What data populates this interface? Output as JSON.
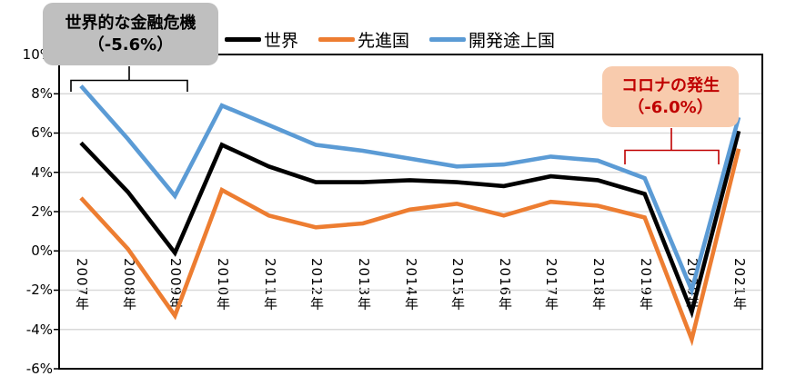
{
  "chart_data": {
    "type": "line",
    "categories": [
      "2007年",
      "2008年",
      "2009年",
      "2010年",
      "2011年",
      "2012年",
      "2013年",
      "2014年",
      "2015年",
      "2016年",
      "2017年",
      "2018年",
      "2019年",
      "2020年",
      "2021年"
    ],
    "series": [
      {
        "name": "世界",
        "color": "#000000",
        "values": [
          5.5,
          3.0,
          -0.1,
          5.4,
          4.3,
          3.5,
          3.5,
          3.6,
          3.5,
          3.3,
          3.8,
          3.6,
          2.9,
          -3.1,
          6.1
        ]
      },
      {
        "name": "先進国",
        "color": "#ED7D31",
        "values": [
          2.7,
          0.1,
          -3.3,
          3.1,
          1.8,
          1.2,
          1.4,
          2.1,
          2.4,
          1.8,
          2.5,
          2.3,
          1.7,
          -4.5,
          5.2
        ]
      },
      {
        "name": "開発途上国",
        "color": "#5B9BD5",
        "values": [
          8.4,
          5.7,
          2.8,
          7.4,
          6.4,
          5.4,
          5.1,
          4.7,
          4.3,
          4.4,
          4.8,
          4.6,
          3.7,
          -2.0,
          6.8
        ]
      }
    ],
    "ylim": [
      -6,
      10
    ],
    "ytick_step": 2,
    "ytick_labels": [
      "10%",
      "8%",
      "6%",
      "4%",
      "2%",
      "0%",
      "-2%",
      "-4%",
      "-6%"
    ],
    "grid": true,
    "grid_color": "#D9D9D9",
    "axis_color": "#000000",
    "legend_position": "top"
  },
  "annotations": {
    "financial_crisis": {
      "line1": "世界的な金融危機",
      "line2": "（-5.6%）",
      "bg": "#BFBFBF",
      "text_color": "#000000"
    },
    "covid": {
      "line1": "コロナの発生",
      "line2": "（-6.0%）",
      "bg": "#F8CBAD",
      "text_color": "#C00000"
    }
  }
}
